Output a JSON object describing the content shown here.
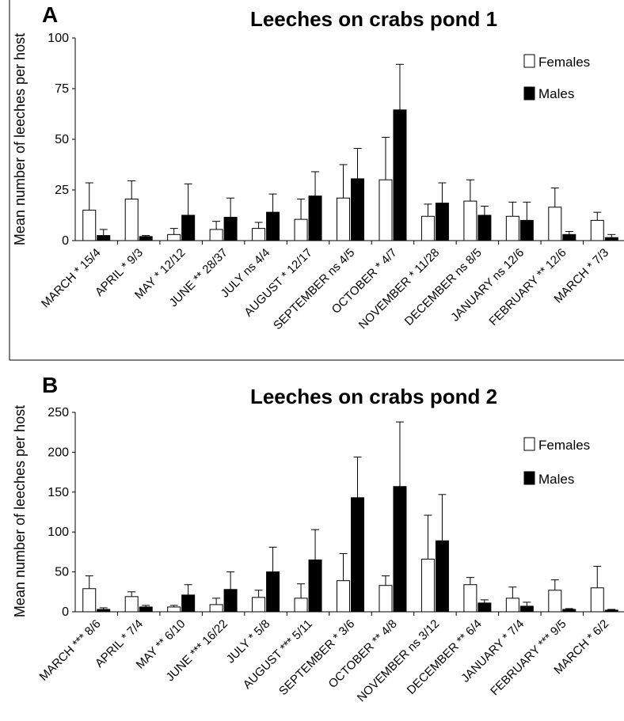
{
  "chart_data": [
    {
      "panel_letter": "A",
      "type": "bar",
      "title": "Leeches on crabs pond 1",
      "ylabel": "Mean  number of leeches per host",
      "xlabel": "",
      "ylim": [
        0,
        100
      ],
      "yticks": [
        0,
        25,
        50,
        75,
        100
      ],
      "grid": false,
      "legend_position": "top-right",
      "categories": [
        "MARCH * 15/4",
        "APRIL * 9/3",
        "MAY * 12/12",
        "JUNE ** 28/37",
        "JULY ns 4/4",
        "AUGUST * 12/17",
        "SEPTEMBER ns 4/5",
        "OCTOBER * 4/7",
        "NOVEMBER * 11/28",
        "DECEMBER ns 8/5",
        "JANUARY ns 12/6",
        "FEBRUARY ** 12/6",
        "MARCH * 7/3"
      ],
      "series": [
        {
          "name": "Females",
          "color": "#ffffff",
          "values": [
            15,
            20.5,
            3,
            5.5,
            6,
            10.5,
            21,
            30,
            12,
            19.5,
            12,
            16.5,
            10
          ],
          "errors": [
            13.5,
            9,
            3,
            4,
            3,
            10,
            16.5,
            21,
            6,
            10.5,
            7,
            9.5,
            4
          ]
        },
        {
          "name": "Males",
          "color": "#000000",
          "values": [
            2.5,
            2,
            12.5,
            11.5,
            14,
            22,
            30.5,
            64.5,
            18.5,
            12.5,
            10,
            3,
            1.5
          ],
          "errors": [
            3,
            0.5,
            15.5,
            9.5,
            9,
            12,
            15,
            22.5,
            10,
            4.5,
            9,
            1.5,
            1.5
          ]
        }
      ]
    },
    {
      "panel_letter": "B",
      "type": "bar",
      "title": "Leeches on crabs pond 2",
      "ylabel": "Mean  number of leeches per host",
      "xlabel": "",
      "ylim": [
        0,
        250
      ],
      "yticks": [
        0,
        50,
        100,
        150,
        200,
        250
      ],
      "grid": false,
      "legend_position": "top-right",
      "categories": [
        "MARCH *** 8/6",
        "APRIL * 7/4",
        "MAY ** 6/10",
        "JUNE *** 16/22",
        "JULY * 5/8",
        "AUGUST *** 5/11",
        "SEPTEMBER * 3/6",
        "OCTOBER ** 4/8",
        "NOVEMBER ns 3/12",
        "DECEMBER ** 6/4",
        "JANUARY * 7/4",
        "FEBRUARY *** 9/5",
        "MARCH * 6/2"
      ],
      "series": [
        {
          "name": "Females",
          "color": "#ffffff",
          "values": [
            29,
            19,
            6,
            9,
            18,
            17,
            39,
            33,
            66,
            34,
            17,
            27,
            30
          ],
          "errors": [
            16,
            6,
            2,
            8,
            9,
            18,
            34,
            12,
            55,
            9,
            14,
            13,
            27
          ]
        },
        {
          "name": "Males",
          "color": "#000000",
          "values": [
            3,
            6,
            21,
            28,
            50,
            65,
            143,
            157,
            89,
            11,
            7,
            3,
            2
          ],
          "errors": [
            2,
            2,
            13,
            22,
            31,
            38,
            51,
            81,
            58,
            4,
            5,
            1,
            1
          ]
        }
      ]
    }
  ]
}
